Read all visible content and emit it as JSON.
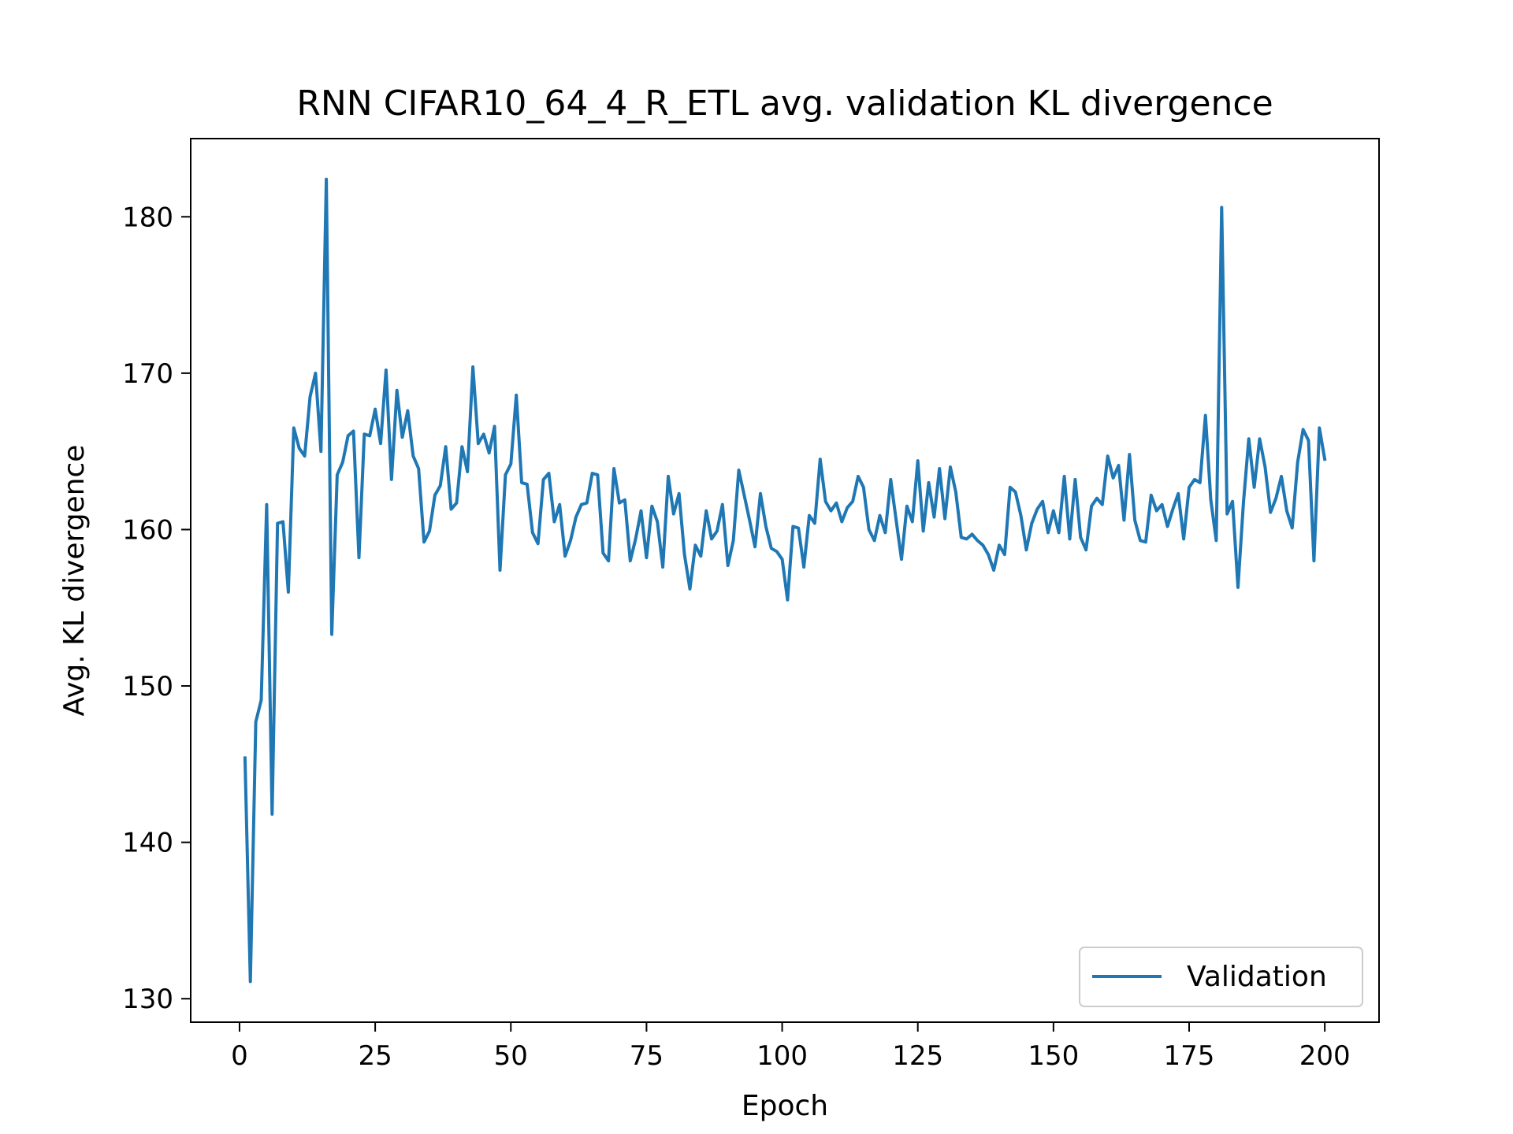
{
  "chart_data": {
    "type": "line",
    "title": "RNN CIFAR10_64_4_R_ETL avg. validation KL divergence",
    "xlabel": "Epoch",
    "ylabel": "Avg. KL divergence",
    "xlim": [
      -9,
      210
    ],
    "ylim": [
      128.5,
      185
    ],
    "xticks": [
      0,
      25,
      50,
      75,
      100,
      125,
      150,
      175,
      200
    ],
    "yticks": [
      130,
      140,
      150,
      160,
      170,
      180
    ],
    "grid": false,
    "legend": {
      "position": "bottom-right",
      "entries": [
        "Validation"
      ]
    },
    "colors": {
      "Validation": "#1f77b4"
    },
    "x_start": 1,
    "series": [
      {
        "name": "Validation",
        "values": [
          145.4,
          131.1,
          147.7,
          149.1,
          161.6,
          141.8,
          160.4,
          160.5,
          156.0,
          166.5,
          165.2,
          164.7,
          168.5,
          170.0,
          165.0,
          182.4,
          153.3,
          163.5,
          164.3,
          166.0,
          166.3,
          158.2,
          166.1,
          166.0,
          167.7,
          165.5,
          170.2,
          163.2,
          168.9,
          165.9,
          167.6,
          164.7,
          163.9,
          159.2,
          159.9,
          162.2,
          162.8,
          165.3,
          161.3,
          161.7,
          165.3,
          163.7,
          170.4,
          165.5,
          166.1,
          164.9,
          166.6,
          157.4,
          163.5,
          164.2,
          168.6,
          163.0,
          162.9,
          159.8,
          159.1,
          163.2,
          163.6,
          160.5,
          161.6,
          158.3,
          159.3,
          160.8,
          161.6,
          161.7,
          163.6,
          163.5,
          158.5,
          158.0,
          163.9,
          161.7,
          161.9,
          158.0,
          159.4,
          161.2,
          158.2,
          161.5,
          160.5,
          157.6,
          163.4,
          161.0,
          162.3,
          158.4,
          156.2,
          159.0,
          158.3,
          161.2,
          159.4,
          159.9,
          161.6,
          157.7,
          159.3,
          163.8,
          162.2,
          160.6,
          158.9,
          162.3,
          160.2,
          158.8,
          158.6,
          158.1,
          155.5,
          160.2,
          160.1,
          157.6,
          160.9,
          160.4,
          164.5,
          161.8,
          161.2,
          161.7,
          160.5,
          161.4,
          161.8,
          163.4,
          162.7,
          160.0,
          159.3,
          160.9,
          159.8,
          163.2,
          160.6,
          158.1,
          161.5,
          160.5,
          164.4,
          159.9,
          163.0,
          160.8,
          163.9,
          160.7,
          164.0,
          162.4,
          159.5,
          159.4,
          159.7,
          159.3,
          159.0,
          158.4,
          157.4,
          159.0,
          158.4,
          162.7,
          162.4,
          160.9,
          158.7,
          160.4,
          161.3,
          161.8,
          159.8,
          161.2,
          159.8,
          163.4,
          159.4,
          163.2,
          159.5,
          158.7,
          161.5,
          162.0,
          161.6,
          164.7,
          163.3,
          164.1,
          160.6,
          164.8,
          160.6,
          159.3,
          159.2,
          162.2,
          161.2,
          161.6,
          160.2,
          161.3,
          162.3,
          159.4,
          162.7,
          163.2,
          163.0,
          167.3,
          161.9,
          159.3,
          180.6,
          161.0,
          161.8,
          156.3,
          161.7,
          165.8,
          162.7,
          165.8,
          164.0,
          161.1,
          162.0,
          163.4,
          161.2,
          160.1,
          164.3,
          166.4,
          165.7,
          158.0,
          166.5,
          164.5
        ]
      }
    ]
  }
}
